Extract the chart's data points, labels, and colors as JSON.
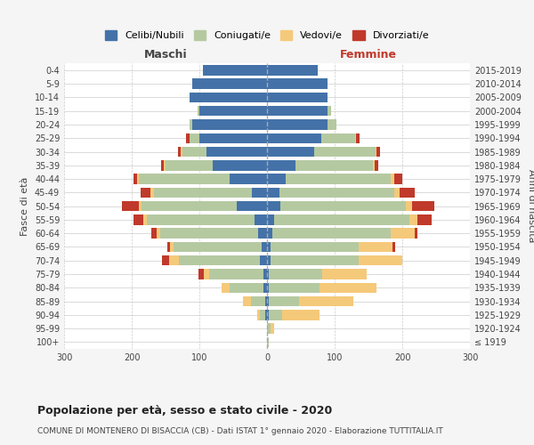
{
  "age_groups": [
    "100+",
    "95-99",
    "90-94",
    "85-89",
    "80-84",
    "75-79",
    "70-74",
    "65-69",
    "60-64",
    "55-59",
    "50-54",
    "45-49",
    "40-44",
    "35-39",
    "30-34",
    "25-29",
    "20-24",
    "15-19",
    "10-14",
    "5-9",
    "0-4"
  ],
  "birth_years": [
    "≤ 1919",
    "1920-1924",
    "1925-1929",
    "1930-1934",
    "1935-1939",
    "1940-1944",
    "1945-1949",
    "1950-1954",
    "1955-1959",
    "1960-1964",
    "1965-1969",
    "1970-1974",
    "1975-1979",
    "1980-1984",
    "1985-1989",
    "1990-1994",
    "1995-1999",
    "2000-2004",
    "2005-2009",
    "2010-2014",
    "2015-2019"
  ],
  "maschi": {
    "celibi": [
      0,
      0,
      2,
      2,
      5,
      5,
      10,
      8,
      13,
      18,
      45,
      22,
      55,
      80,
      90,
      100,
      110,
      100,
      115,
      110,
      95
    ],
    "coniugati": [
      0,
      0,
      8,
      22,
      50,
      80,
      120,
      130,
      145,
      160,
      140,
      145,
      135,
      70,
      35,
      15,
      5,
      2,
      0,
      0,
      0
    ],
    "vedovi": [
      0,
      0,
      5,
      12,
      12,
      8,
      15,
      5,
      5,
      5,
      5,
      5,
      2,
      2,
      2,
      0,
      0,
      0,
      0,
      0,
      0
    ],
    "divorziati": [
      0,
      0,
      0,
      0,
      0,
      8,
      10,
      5,
      8,
      15,
      25,
      15,
      5,
      5,
      5,
      5,
      0,
      0,
      0,
      0,
      0
    ]
  },
  "femmine": {
    "nubili": [
      0,
      0,
      2,
      2,
      2,
      2,
      5,
      5,
      8,
      10,
      20,
      18,
      28,
      42,
      70,
      80,
      90,
      90,
      90,
      90,
      75
    ],
    "coniugate": [
      2,
      5,
      20,
      45,
      75,
      80,
      130,
      130,
      175,
      200,
      185,
      170,
      155,
      115,
      90,
      50,
      12,
      5,
      0,
      0,
      0
    ],
    "vedove": [
      0,
      5,
      55,
      80,
      85,
      65,
      65,
      50,
      35,
      12,
      10,
      8,
      5,
      2,
      2,
      2,
      0,
      0,
      0,
      0,
      0
    ],
    "divorziate": [
      0,
      0,
      0,
      0,
      0,
      0,
      0,
      5,
      5,
      22,
      32,
      22,
      12,
      5,
      5,
      5,
      0,
      0,
      0,
      0,
      0
    ]
  },
  "colors": {
    "celibi": "#4472a8",
    "coniugati": "#b5c9a1",
    "vedovi": "#f5c97a",
    "divorziati": "#c0392b"
  },
  "xlim": 300,
  "title": "Popolazione per età, sesso e stato civile - 2020",
  "subtitle": "COMUNE DI MONTENERO DI BISACCIA (CB) - Dati ISTAT 1° gennaio 2020 - Elaborazione TUTTITALIA.IT",
  "ylabel_left": "Fasce di età",
  "ylabel_right": "Anni di nascita",
  "xlabel_maschi": "Maschi",
  "xlabel_femmine": "Femmine",
  "bg_color": "#f5f5f5",
  "plot_bg": "#ffffff"
}
